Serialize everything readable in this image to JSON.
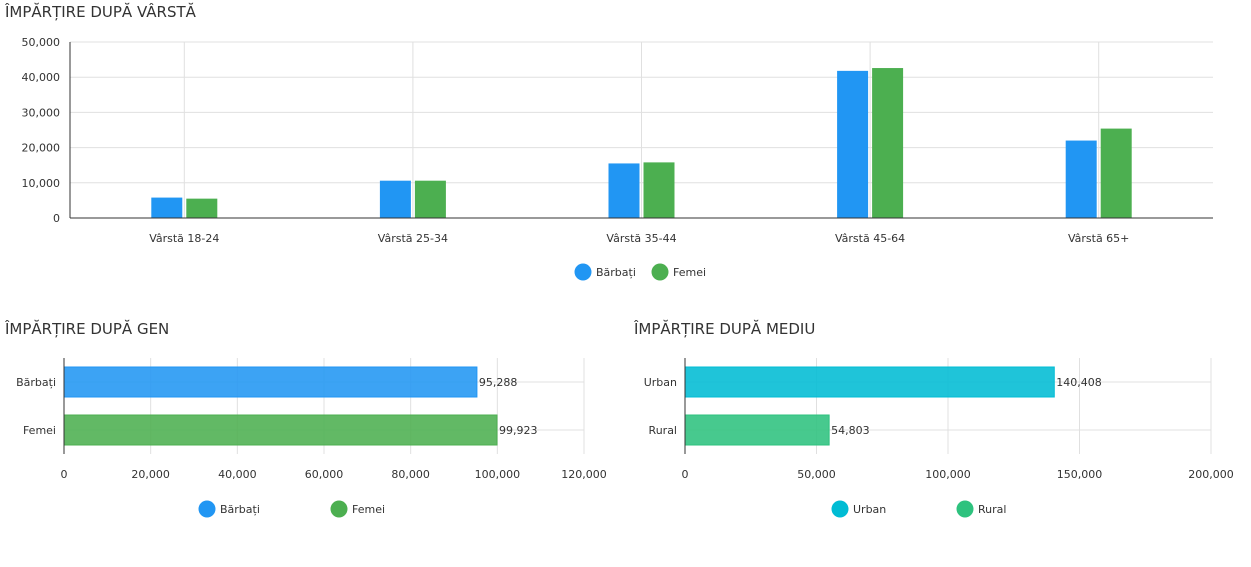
{
  "chart_data": [
    {
      "type": "bar",
      "orientation": "vertical",
      "title": "ÎMPĂRȚIRE DUPĂ VÂRSTĂ",
      "categories": [
        "Vârstă 18-24",
        "Vârstă 25-34",
        "Vârstă 35-44",
        "Vârstă 45-64",
        "Vârstă 65+"
      ],
      "series": [
        {
          "name": "Bărbați",
          "color": "#2196f3",
          "values": [
            5800,
            10600,
            15500,
            41800,
            22000
          ]
        },
        {
          "name": "Femei",
          "color": "#4caf50",
          "values": [
            5500,
            10600,
            15800,
            42600,
            25400
          ]
        }
      ],
      "ylim": [
        0,
        50000
      ],
      "yticks": [
        "0",
        "10,000",
        "20,000",
        "30,000",
        "40,000",
        "50,000"
      ],
      "grid": true,
      "legend": "bottom"
    },
    {
      "type": "bar",
      "orientation": "horizontal",
      "title": "ÎMPĂRȚIRE DUPĂ GEN",
      "categories": [
        "Bărbați",
        "Femei"
      ],
      "values": [
        95288,
        99923
      ],
      "value_labels": [
        "95,288",
        "99,923"
      ],
      "colors": [
        "#2196f3",
        "#4caf50"
      ],
      "xlim": [
        0,
        120000
      ],
      "xticks": [
        "0",
        "20,000",
        "40,000",
        "60,000",
        "80,000",
        "100,000",
        "120,000"
      ],
      "grid": true,
      "legend": "bottom",
      "legend_items": [
        {
          "name": "Bărbați",
          "color": "#2196f3"
        },
        {
          "name": "Femei",
          "color": "#4caf50"
        }
      ]
    },
    {
      "type": "bar",
      "orientation": "horizontal",
      "title": "ÎMPĂRȚIRE DUPĂ MEDIU",
      "categories": [
        "Urban",
        "Rural"
      ],
      "values": [
        140408,
        54803
      ],
      "value_labels": [
        "140,408",
        "54,803"
      ],
      "colors": [
        "#00bcd4",
        "#2ec27e"
      ],
      "xlim": [
        0,
        200000
      ],
      "xticks": [
        "0",
        "50,000",
        "100,000",
        "150,000",
        "200,000"
      ],
      "grid": true,
      "legend": "bottom",
      "legend_items": [
        {
          "name": "Urban",
          "color": "#00bcd4"
        },
        {
          "name": "Rural",
          "color": "#2ec27e"
        }
      ]
    }
  ]
}
